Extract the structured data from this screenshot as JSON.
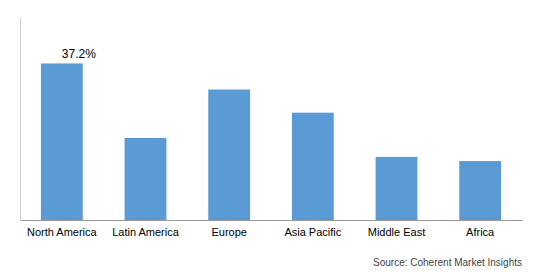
{
  "chart_data": {
    "type": "bar",
    "categories": [
      "North America",
      "Latin America",
      "Europe",
      "Asia Pacific",
      "Middle East",
      "Africa"
    ],
    "values": [
      37.2,
      19.5,
      31.0,
      25.5,
      15.0,
      14.0
    ],
    "color": "#5b9bd5",
    "ylim": [
      0,
      48
    ],
    "tick_labels": "x",
    "annotations": [
      {
        "text": "37.2%",
        "category": "North America"
      }
    ],
    "source": "Source: Coherent Market Insights"
  }
}
